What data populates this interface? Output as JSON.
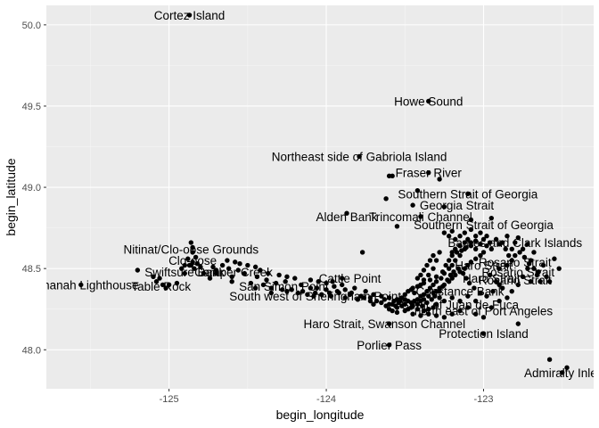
{
  "chart_data": {
    "type": "scatter",
    "title": "",
    "xlabel": "begin_longitude",
    "ylabel": "begin_latitude",
    "xlim": [
      -125.78,
      -122.3
    ],
    "ylim": [
      47.76,
      50.12
    ],
    "xticks": [
      -125,
      -124,
      -123
    ],
    "xtick_labels": [
      "-125",
      "-124",
      "-123"
    ],
    "yticks": [
      48.0,
      48.5,
      49.0,
      49.5,
      50.0
    ],
    "ytick_labels": [
      "48.0",
      "48.5",
      "49.0",
      "49.5",
      "50.0"
    ],
    "grid": true,
    "legend": "none",
    "colors": {
      "panel": "#ebebeb",
      "grid_major": "#ffffff",
      "grid_minor": "#f5f5f5",
      "point": "#000000"
    },
    "labeled_points": [
      {
        "x": -124.87,
        "y": 50.06,
        "label": "Cortez Island"
      },
      {
        "x": -123.35,
        "y": 49.53,
        "label": "Howe Sound"
      },
      {
        "x": -123.79,
        "y": 49.19,
        "label": "Northeast side of Gabriola Island"
      },
      {
        "x": -123.35,
        "y": 49.09,
        "label": "Fraser River"
      },
      {
        "x": -123.1,
        "y": 48.96,
        "label": "Southern Strait of Georgia"
      },
      {
        "x": -123.17,
        "y": 48.89,
        "label": "Georgia Strait"
      },
      {
        "x": -123.4,
        "y": 48.82,
        "label": "Trincomali Channel"
      },
      {
        "x": -123.87,
        "y": 48.82,
        "label": "Alden Bank"
      },
      {
        "x": -123.0,
        "y": 48.77,
        "label": "Southern Strait of Georgia"
      },
      {
        "x": -122.8,
        "y": 48.66,
        "label": "Barnes and Clark Islands"
      },
      {
        "x": -124.86,
        "y": 48.62,
        "label": "Nitinat/Clo-oose Grounds"
      },
      {
        "x": -124.85,
        "y": 48.55,
        "label": "Clo-oose"
      },
      {
        "x": -122.8,
        "y": 48.54,
        "label": "Rosario Strait"
      },
      {
        "x": -122.78,
        "y": 48.48,
        "label": "Rosario Strait"
      },
      {
        "x": -122.8,
        "y": 48.43,
        "label": "Rosario Strait"
      },
      {
        "x": -124.9,
        "y": 48.48,
        "label": "Swiftsure Bank"
      },
      {
        "x": -124.59,
        "y": 48.48,
        "label": "Camper Creek"
      },
      {
        "x": -123.85,
        "y": 48.44,
        "label": "Cattle Point"
      },
      {
        "x": -125.57,
        "y": 48.4,
        "label": "Carmanah Lighthouse"
      },
      {
        "x": -125.05,
        "y": 48.39,
        "label": "Table Rock"
      },
      {
        "x": -124.27,
        "y": 48.39,
        "label": "San Simon Point"
      },
      {
        "x": -124.07,
        "y": 48.33,
        "label": "South west of Sheringham Point"
      },
      {
        "x": -123.0,
        "y": 48.52,
        "label": "Haro Strait"
      },
      {
        "x": -122.95,
        "y": 48.44,
        "label": "Haro Strait"
      },
      {
        "x": -123.15,
        "y": 48.36,
        "label": "Constance Bank"
      },
      {
        "x": -123.15,
        "y": 48.28,
        "label": "Strait of Juan de Fuca"
      },
      {
        "x": -123.0,
        "y": 48.24,
        "label": "north east of Port Angeles"
      },
      {
        "x": -123.63,
        "y": 48.16,
        "label": "Haro Strait, Swanson Channel"
      },
      {
        "x": -123.0,
        "y": 48.1,
        "label": "Protection Island"
      },
      {
        "x": -123.6,
        "y": 48.03,
        "label": "Porlier Pass"
      },
      {
        "x": -122.5,
        "y": 47.86,
        "label": "Admiralty Inlet"
      }
    ],
    "points": [
      [
        -124.87,
        50.06
      ],
      [
        -123.35,
        49.53
      ],
      [
        -123.79,
        49.19
      ],
      [
        -123.35,
        49.09
      ],
      [
        -123.1,
        48.96
      ],
      [
        -123.87,
        48.84
      ],
      [
        -123.6,
        49.07
      ],
      [
        -123.58,
        49.07
      ],
      [
        -123.28,
        49.05
      ],
      [
        -123.42,
        48.98
      ],
      [
        -123.62,
        48.93
      ],
      [
        -123.45,
        48.89
      ],
      [
        -123.25,
        48.88
      ],
      [
        -123.4,
        48.82
      ],
      [
        -123.08,
        48.8
      ],
      [
        -122.95,
        48.81
      ],
      [
        -123.55,
        48.76
      ],
      [
        -123.77,
        48.6
      ],
      [
        -124.86,
        48.66
      ],
      [
        -124.85,
        48.63
      ],
      [
        -124.85,
        48.6
      ],
      [
        -124.88,
        48.56
      ],
      [
        -124.85,
        48.54
      ],
      [
        -124.9,
        48.52
      ],
      [
        -124.87,
        48.52
      ],
      [
        -124.86,
        48.52
      ],
      [
        -125.2,
        48.49
      ],
      [
        -125.1,
        48.45
      ],
      [
        -125.06,
        48.44
      ],
      [
        -125.0,
        48.4
      ],
      [
        -125.04,
        48.4
      ],
      [
        -124.95,
        48.41
      ],
      [
        -124.72,
        48.51
      ],
      [
        -124.7,
        48.49
      ],
      [
        -124.63,
        48.55
      ],
      [
        -124.58,
        48.54
      ],
      [
        -124.55,
        48.53
      ],
      [
        -124.5,
        48.52
      ],
      [
        -124.45,
        48.51
      ],
      [
        -124.42,
        48.49
      ],
      [
        -124.37,
        48.47
      ],
      [
        -124.3,
        48.46
      ],
      [
        -124.25,
        48.45
      ],
      [
        -124.2,
        48.44
      ],
      [
        -124.78,
        48.47
      ],
      [
        -124.74,
        48.44
      ],
      [
        -124.6,
        48.42
      ],
      [
        -124.48,
        48.41
      ],
      [
        -124.4,
        48.4
      ],
      [
        -124.35,
        48.38
      ],
      [
        -124.28,
        48.37
      ],
      [
        -124.25,
        48.36
      ],
      [
        -124.15,
        48.36
      ],
      [
        -124.1,
        48.38
      ],
      [
        -124.07,
        48.35
      ],
      [
        -124.0,
        48.37
      ],
      [
        -123.97,
        48.33
      ],
      [
        -123.92,
        48.35
      ],
      [
        -123.88,
        48.32
      ],
      [
        -123.85,
        48.34
      ],
      [
        -123.8,
        48.31
      ],
      [
        -123.76,
        48.32
      ],
      [
        -123.72,
        48.3
      ],
      [
        -123.7,
        48.28
      ],
      [
        -123.65,
        48.29
      ],
      [
        -123.62,
        48.27
      ],
      [
        -123.58,
        48.28
      ],
      [
        -123.55,
        48.26
      ],
      [
        -123.52,
        48.27
      ],
      [
        -123.48,
        48.25
      ],
      [
        -123.45,
        48.27
      ],
      [
        -123.42,
        48.28
      ],
      [
        -123.4,
        48.3
      ],
      [
        -123.38,
        48.31
      ],
      [
        -123.35,
        48.33
      ],
      [
        -123.32,
        48.35
      ],
      [
        -123.3,
        48.36
      ],
      [
        -123.28,
        48.38
      ],
      [
        -123.25,
        48.4
      ],
      [
        -123.22,
        48.42
      ],
      [
        -123.2,
        48.44
      ],
      [
        -123.18,
        48.46
      ],
      [
        -123.15,
        48.48
      ],
      [
        -123.12,
        48.5
      ],
      [
        -123.1,
        48.52
      ],
      [
        -123.08,
        48.54
      ],
      [
        -123.05,
        48.56
      ],
      [
        -123.02,
        48.58
      ],
      [
        -123.2,
        48.6
      ],
      [
        -123.18,
        48.62
      ],
      [
        -123.15,
        48.64
      ],
      [
        -123.12,
        48.66
      ],
      [
        -123.1,
        48.68
      ],
      [
        -123.22,
        48.7
      ],
      [
        -123.25,
        48.72
      ],
      [
        -123.2,
        48.73
      ],
      [
        -123.05,
        48.7
      ],
      [
        -123.0,
        48.68
      ],
      [
        -123.28,
        48.6
      ],
      [
        -123.3,
        48.55
      ],
      [
        -123.32,
        48.5
      ],
      [
        -123.35,
        48.46
      ],
      [
        -123.38,
        48.43
      ],
      [
        -123.4,
        48.4
      ],
      [
        -123.45,
        48.38
      ],
      [
        -123.48,
        48.36
      ],
      [
        -123.5,
        48.34
      ],
      [
        -123.52,
        48.32
      ],
      [
        -123.55,
        48.31
      ],
      [
        -123.6,
        48.32
      ],
      [
        -123.65,
        48.33
      ],
      [
        -123.7,
        48.34
      ],
      [
        -123.75,
        48.36
      ],
      [
        -123.82,
        48.38
      ],
      [
        -123.9,
        48.4
      ],
      [
        -123.95,
        48.39
      ],
      [
        -124.0,
        48.41
      ],
      [
        -124.05,
        48.42
      ],
      [
        -124.1,
        48.43
      ],
      [
        -123.6,
        48.25
      ],
      [
        -123.58,
        48.24
      ],
      [
        -123.55,
        48.23
      ],
      [
        -123.5,
        48.24
      ],
      [
        -123.45,
        48.22
      ],
      [
        -123.4,
        48.21
      ],
      [
        -123.35,
        48.22
      ],
      [
        -123.3,
        48.21
      ],
      [
        -123.25,
        48.2
      ],
      [
        -123.2,
        48.22
      ],
      [
        -123.15,
        48.24
      ],
      [
        -123.1,
        48.26
      ],
      [
        -123.05,
        48.22
      ],
      [
        -123.0,
        48.2
      ],
      [
        -122.95,
        48.26
      ],
      [
        -122.9,
        48.3
      ],
      [
        -122.85,
        48.32
      ],
      [
        -122.88,
        48.38
      ],
      [
        -122.92,
        48.42
      ],
      [
        -122.96,
        48.46
      ],
      [
        -122.9,
        48.5
      ],
      [
        -122.85,
        48.52
      ],
      [
        -122.82,
        48.55
      ],
      [
        -122.8,
        48.58
      ],
      [
        -122.75,
        48.62
      ],
      [
        -122.72,
        48.65
      ],
      [
        -122.78,
        48.69
      ],
      [
        -122.68,
        48.6
      ],
      [
        -122.7,
        48.55
      ],
      [
        -122.72,
        48.5
      ],
      [
        -122.75,
        48.45
      ],
      [
        -122.78,
        48.4
      ],
      [
        -122.82,
        48.36
      ],
      [
        -122.7,
        48.42
      ],
      [
        -122.65,
        48.48
      ],
      [
        -122.62,
        48.52
      ],
      [
        -122.55,
        48.56
      ],
      [
        -122.6,
        48.45
      ],
      [
        -122.58,
        48.42
      ],
      [
        -122.52,
        48.5
      ],
      [
        -122.9,
        48.65
      ],
      [
        -122.85,
        48.7
      ],
      [
        -122.95,
        48.62
      ],
      [
        -123.0,
        48.6
      ],
      [
        -123.05,
        48.62
      ],
      [
        -123.08,
        48.64
      ],
      [
        -123.12,
        48.62
      ],
      [
        -123.15,
        48.58
      ],
      [
        -123.18,
        48.55
      ],
      [
        -123.2,
        48.52
      ],
      [
        -123.22,
        48.5
      ],
      [
        -123.25,
        48.47
      ],
      [
        -123.27,
        48.44
      ],
      [
        -123.3,
        48.42
      ],
      [
        -123.32,
        48.4
      ],
      [
        -123.34,
        48.38
      ],
      [
        -123.36,
        48.36
      ],
      [
        -123.38,
        48.34
      ],
      [
        -123.4,
        48.33
      ],
      [
        -123.42,
        48.31
      ],
      [
        -123.44,
        48.3
      ],
      [
        -123.46,
        48.29
      ],
      [
        -123.48,
        48.3
      ],
      [
        -123.5,
        48.31
      ],
      [
        -123.53,
        48.3
      ],
      [
        -123.57,
        48.3
      ],
      [
        -123.63,
        48.31
      ],
      [
        -123.68,
        48.3
      ],
      [
        -123.72,
        48.32
      ],
      [
        -123.78,
        48.33
      ],
      [
        -123.84,
        48.35
      ],
      [
        -123.88,
        48.37
      ],
      [
        -123.93,
        48.36
      ],
      [
        -123.98,
        48.35
      ],
      [
        -124.03,
        48.34
      ],
      [
        -124.08,
        48.33
      ],
      [
        -124.12,
        48.34
      ],
      [
        -124.18,
        48.35
      ],
      [
        -124.22,
        48.37
      ],
      [
        -124.32,
        48.41
      ],
      [
        -124.38,
        48.43
      ],
      [
        -124.44,
        48.45
      ],
      [
        -124.52,
        48.47
      ],
      [
        -124.56,
        48.49
      ],
      [
        -124.62,
        48.5
      ],
      [
        -124.66,
        48.52
      ],
      [
        -124.8,
        48.51
      ],
      [
        -124.82,
        48.53
      ],
      [
        -124.84,
        48.5
      ],
      [
        -124.9,
        48.47
      ],
      [
        -125.02,
        48.38
      ],
      [
        -125.56,
        48.4
      ],
      [
        -123.6,
        48.03
      ],
      [
        -123.6,
        48.16
      ],
      [
        -123.0,
        48.1
      ],
      [
        -122.58,
        47.94
      ],
      [
        -122.47,
        47.89
      ],
      [
        -122.5,
        47.86
      ],
      [
        -122.78,
        48.16
      ],
      [
        -123.05,
        48.3
      ],
      [
        -123.1,
        48.33
      ],
      [
        -123.15,
        48.3
      ],
      [
        -123.2,
        48.32
      ],
      [
        -123.25,
        48.3
      ],
      [
        -123.28,
        48.32
      ],
      [
        -123.3,
        48.28
      ],
      [
        -123.32,
        48.26
      ],
      [
        -123.35,
        48.25
      ],
      [
        -123.38,
        48.24
      ],
      [
        -123.42,
        48.25
      ],
      [
        -123.46,
        48.26
      ],
      [
        -123.5,
        48.28
      ],
      [
        -123.54,
        48.29
      ],
      [
        -123.56,
        48.27
      ],
      [
        -123.6,
        48.28
      ],
      [
        -123.44,
        48.35
      ],
      [
        -123.46,
        48.37
      ],
      [
        -123.42,
        48.39
      ],
      [
        -123.38,
        48.41
      ],
      [
        -123.34,
        48.43
      ],
      [
        -123.3,
        48.45
      ],
      [
        -123.26,
        48.48
      ],
      [
        -123.24,
        48.52
      ],
      [
        -123.22,
        48.55
      ],
      [
        -123.2,
        48.58
      ],
      [
        -123.17,
        48.6
      ],
      [
        -123.14,
        48.61
      ],
      [
        -123.11,
        48.63
      ],
      [
        -123.08,
        48.66
      ],
      [
        -123.05,
        48.67
      ],
      [
        -123.02,
        48.65
      ],
      [
        -122.98,
        48.64
      ],
      [
        -122.96,
        48.66
      ],
      [
        -122.92,
        48.68
      ],
      [
        -122.88,
        48.66
      ],
      [
        -122.86,
        48.62
      ],
      [
        -122.84,
        48.58
      ],
      [
        -122.82,
        48.62
      ],
      [
        -122.8,
        48.66
      ],
      [
        -122.77,
        48.6
      ],
      [
        -122.74,
        48.57
      ],
      [
        -122.71,
        48.53
      ],
      [
        -122.68,
        48.5
      ],
      [
        -122.66,
        48.46
      ],
      [
        -122.64,
        48.42
      ],
      [
        -122.9,
        48.4
      ],
      [
        -122.94,
        48.36
      ],
      [
        -122.98,
        48.33
      ],
      [
        -123.02,
        48.35
      ],
      [
        -123.06,
        48.38
      ],
      [
        -123.09,
        48.41
      ],
      [
        -123.11,
        48.44
      ],
      [
        -123.13,
        48.47
      ],
      [
        -123.16,
        48.5
      ],
      [
        -123.19,
        48.48
      ],
      [
        -123.21,
        48.46
      ],
      [
        -123.23,
        48.43
      ],
      [
        -123.26,
        48.39
      ],
      [
        -123.28,
        48.36
      ],
      [
        -123.31,
        48.33
      ],
      [
        -123.33,
        48.31
      ],
      [
        -123.36,
        48.29
      ],
      [
        -123.39,
        48.27
      ],
      [
        -123.12,
        48.72
      ],
      [
        -123.15,
        48.7
      ],
      [
        -123.18,
        48.68
      ],
      [
        -123.08,
        48.74
      ],
      [
        -123.02,
        48.72
      ],
      [
        -122.98,
        48.7
      ],
      [
        -123.32,
        48.58
      ],
      [
        -123.34,
        48.55
      ],
      [
        -123.36,
        48.52
      ],
      [
        -123.38,
        48.49
      ],
      [
        -123.4,
        48.46
      ],
      [
        -123.42,
        48.44
      ],
      [
        -124.26,
        48.42
      ],
      [
        -124.16,
        48.4
      ],
      [
        -124.06,
        48.38
      ],
      [
        -123.96,
        48.42
      ],
      [
        -123.9,
        48.44
      ],
      [
        -124.45,
        48.38
      ],
      [
        -124.35,
        48.35
      ],
      [
        -124.6,
        48.45
      ],
      [
        -124.7,
        48.47
      ],
      [
        -124.83,
        48.57
      ],
      [
        -124.92,
        48.5
      ],
      [
        -125.08,
        48.42
      ]
    ]
  }
}
